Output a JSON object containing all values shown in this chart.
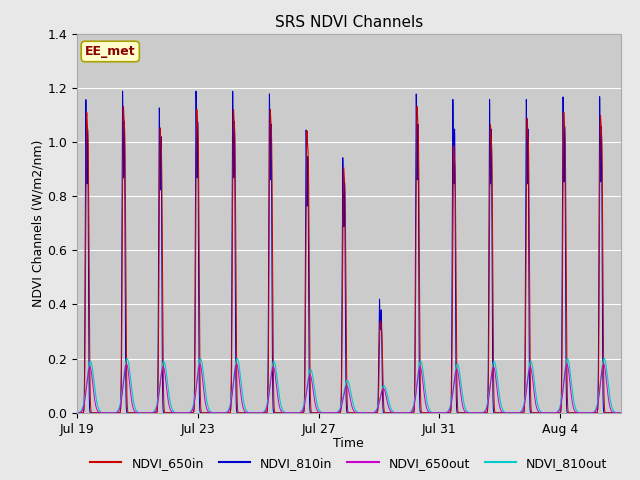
{
  "title": "SRS NDVI Channels",
  "xlabel": "Time",
  "ylabel": "NDVI Channels (W/m2/nm)",
  "ylim": [
    0.0,
    1.4
  ],
  "annotation_text": "EE_met",
  "background_color": "#e8e8e8",
  "plot_bg_color": "#cbcbcb",
  "grid_color": "#e0e0e0",
  "legend": [
    "NDVI_650in",
    "NDVI_810in",
    "NDVI_650out",
    "NDVI_810out"
  ],
  "line_colors": [
    "#cc0000",
    "#0000cc",
    "#cc00cc",
    "#00cccc"
  ],
  "xtick_labels": [
    "Jul 19",
    "Jul 23",
    "Jul 27",
    "Jul 31",
    "Aug 4"
  ],
  "total_days": 18.0,
  "xtick_days": [
    0,
    4,
    8,
    12,
    16
  ]
}
